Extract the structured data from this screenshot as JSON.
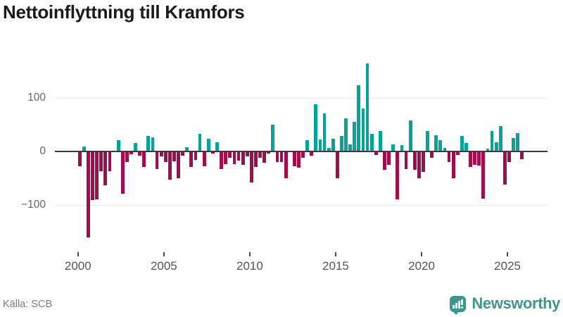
{
  "title": "Nettoinflyttning till Kramfors",
  "source": "Källa: SCB",
  "branding": {
    "logo_text": "Newsworthy",
    "logo_icon": "bar-chart-speech-bubble-icon"
  },
  "colors": {
    "positive_bar": "#00a49b",
    "negative_bar": "#a00d4d",
    "zero_line": "#3a3a3a",
    "gridline": "#e7e7e7",
    "title_text": "#1a1a1a",
    "axis_text": "#666666",
    "source_text": "#7c7c7c",
    "logo_teal": "#3f968f",
    "wordmark_teal": "#43948d"
  },
  "chart_data": {
    "type": "bar",
    "title": "Nettoinflyttning till Kramfors",
    "xlabel": "",
    "ylabel": "",
    "frequency": "quarterly",
    "start_year": 2000,
    "x_tick_labels": [
      "2000",
      "2005",
      "2010",
      "2015",
      "2020",
      "2025"
    ],
    "y_ticks": [
      100,
      0,
      -100
    ],
    "y_tick_labels": [
      "100",
      "0",
      "−100"
    ],
    "ylim": [
      -175,
      180
    ],
    "grid": "horizontal-only",
    "legend": "none",
    "values": [
      -28,
      8,
      -161,
      -91,
      -90,
      -38,
      -64,
      -37,
      -2,
      20,
      -79,
      -21,
      -6,
      15,
      -9,
      -29,
      28,
      26,
      -34,
      -10,
      -20,
      -53,
      -19,
      -51,
      -8,
      7,
      -29,
      -17,
      32,
      -28,
      23,
      -4,
      16,
      -33,
      -24,
      -12,
      -24,
      -18,
      -25,
      -10,
      -59,
      -30,
      -12,
      -22,
      -5,
      50,
      -21,
      -21,
      -50,
      -2,
      -28,
      -31,
      -12,
      21,
      -8,
      88,
      22,
      70,
      6,
      23,
      -51,
      28,
      61,
      13,
      55,
      123,
      79,
      164,
      32,
      -7,
      38,
      -35,
      -26,
      12,
      -90,
      11,
      -33,
      57,
      -35,
      -51,
      -39,
      37,
      -12,
      29,
      20,
      6,
      -20,
      -51,
      -7,
      28,
      15,
      -30,
      -26,
      -27,
      -89,
      4,
      38,
      17,
      47,
      -63,
      -21,
      24,
      33,
      -15
    ]
  }
}
